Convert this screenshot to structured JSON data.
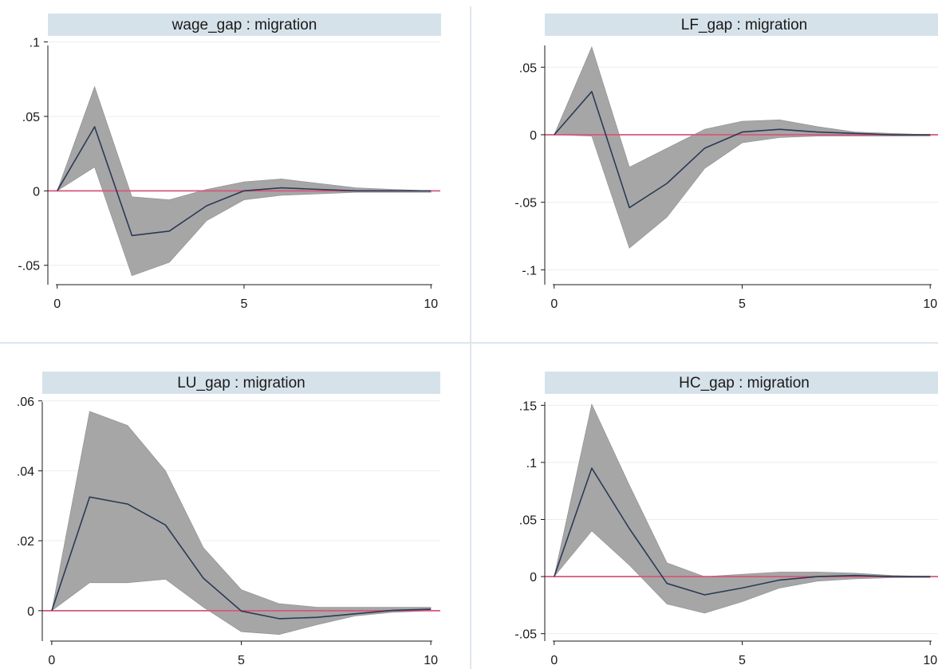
{
  "colors": {
    "title_band": "#d6e2ea",
    "band_fill": "#a6a6a6",
    "band_stroke": "#8c8c8c",
    "irf_line": "#2b3a55",
    "zero_line": "#d6577a",
    "grid": "#e8eef2",
    "axis": "#1a1a1a",
    "separator": "#dde6ec"
  },
  "chart_data": [
    {
      "type": "line",
      "title": "wage_gap : migration",
      "x": [
        0,
        1,
        2,
        3,
        4,
        5,
        6,
        7,
        8,
        9,
        10
      ],
      "xticks": [
        0,
        5,
        10
      ],
      "xtick_labels": [
        "0",
        "5",
        "10"
      ],
      "yticks": [
        -0.05,
        0,
        0.05,
        0.1
      ],
      "ytick_labels": [
        "-.05",
        "0",
        ".05",
        ".1"
      ],
      "ylim": [
        -0.063,
        0.103
      ],
      "xlim": [
        -0.25,
        10.25
      ],
      "grid": true,
      "reference_line": 0,
      "series": [
        {
          "values": [
            0,
            0.043,
            -0.03,
            -0.027,
            -0.01,
            0.0,
            0.002,
            0.001,
            0.0,
            0.0,
            0.0
          ]
        }
      ],
      "band_upper": [
        0,
        0.07,
        -0.004,
        -0.006,
        0.001,
        0.006,
        0.008,
        0.005,
        0.002,
        0.001,
        0.0
      ],
      "band_lower": [
        0,
        0.016,
        -0.057,
        -0.048,
        -0.02,
        -0.006,
        -0.003,
        -0.002,
        -0.001,
        -0.001,
        -0.001
      ]
    },
    {
      "type": "line",
      "title": "LF_gap : migration",
      "x": [
        0,
        1,
        2,
        3,
        4,
        5,
        6,
        7,
        8,
        9,
        10
      ],
      "xticks": [
        0,
        5,
        10
      ],
      "xtick_labels": [
        "0",
        "5",
        "10"
      ],
      "yticks": [
        -0.1,
        -0.05,
        0,
        0.05
      ],
      "ytick_labels": [
        "-.1",
        "-.05",
        "0",
        ".05"
      ],
      "ylim": [
        -0.111,
        0.072
      ],
      "xlim": [
        -0.25,
        10.25
      ],
      "grid": true,
      "reference_line": 0,
      "series": [
        {
          "values": [
            0,
            0.032,
            -0.054,
            -0.036,
            -0.01,
            0.002,
            0.004,
            0.002,
            0.001,
            0.0,
            0.0
          ]
        }
      ],
      "band_upper": [
        0,
        0.065,
        -0.024,
        -0.01,
        0.004,
        0.01,
        0.011,
        0.006,
        0.002,
        0.001,
        0.0
      ],
      "band_lower": [
        0,
        -0.001,
        -0.084,
        -0.061,
        -0.025,
        -0.006,
        -0.002,
        -0.001,
        -0.001,
        -0.001,
        -0.001
      ]
    },
    {
      "type": "line",
      "title": "LU_gap : migration",
      "x": [
        0,
        1,
        2,
        3,
        4,
        5,
        6,
        7,
        8,
        9,
        10
      ],
      "xticks": [
        0,
        5,
        10
      ],
      "xtick_labels": [
        "0",
        "5",
        "10"
      ],
      "yticks": [
        0,
        0.02,
        0.04,
        0.06
      ],
      "ytick_labels": [
        "0",
        ".02",
        ".04",
        ".06"
      ],
      "ylim": [
        -0.0087,
        0.062
      ],
      "xlim": [
        -0.25,
        10.25
      ],
      "grid": true,
      "reference_line": 0,
      "series": [
        {
          "values": [
            0,
            0.0325,
            0.0305,
            0.0245,
            0.0093,
            -0.0001,
            -0.0023,
            -0.0019,
            -0.0009,
            0.0001,
            0.0004
          ]
        }
      ],
      "band_upper": [
        0,
        0.057,
        0.053,
        0.04,
        0.018,
        0.006,
        0.002,
        0.001,
        0.001,
        0.001,
        0.001
      ],
      "band_lower": [
        0,
        0.008,
        0.008,
        0.009,
        0.001,
        -0.006,
        -0.0068,
        -0.004,
        -0.0015,
        -0.0005,
        0.0
      ]
    },
    {
      "type": "line",
      "title": "HC_gap : migration",
      "x": [
        0,
        1,
        2,
        3,
        4,
        5,
        6,
        7,
        8,
        9,
        10
      ],
      "xticks": [
        0,
        5,
        10
      ],
      "xtick_labels": [
        "0",
        "5",
        "10"
      ],
      "yticks": [
        -0.05,
        0,
        0.05,
        0.1,
        0.15
      ],
      "ytick_labels": [
        "-.05",
        "0",
        ".05",
        ".1",
        ".15"
      ],
      "ylim": [
        -0.0565,
        0.16
      ],
      "xlim": [
        -0.25,
        10.25
      ],
      "grid": true,
      "reference_line": 0,
      "series": [
        {
          "values": [
            0,
            0.095,
            0.042,
            -0.006,
            -0.016,
            -0.01,
            -0.003,
            0.0,
            0.001,
            0.0,
            0.0
          ]
        }
      ],
      "band_upper": [
        0,
        0.151,
        0.08,
        0.012,
        0.0,
        0.002,
        0.004,
        0.004,
        0.003,
        0.001,
        0.0
      ],
      "band_lower": [
        0,
        0.04,
        0.01,
        -0.024,
        -0.032,
        -0.022,
        -0.01,
        -0.004,
        -0.002,
        -0.001,
        -0.001
      ]
    }
  ]
}
